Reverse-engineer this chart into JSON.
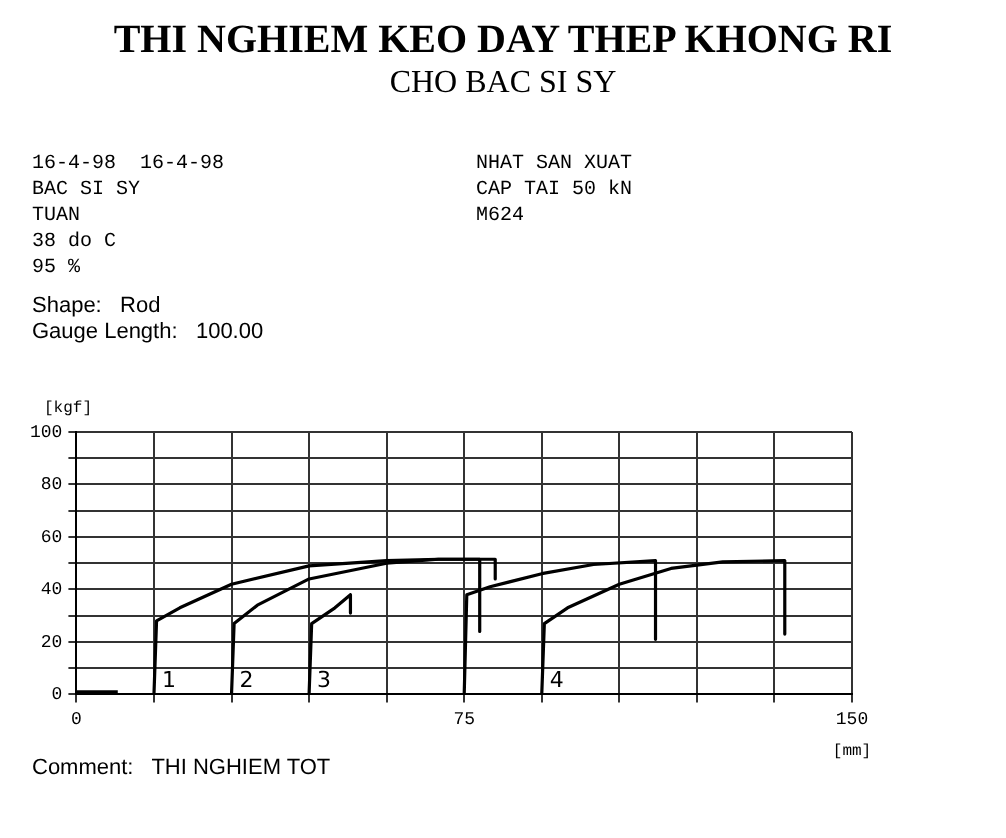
{
  "chart_data": {
    "type": "line",
    "title": "THI NGHIEM KEO DAY THEP KHONG RI",
    "subtitle": "CHO BAC SI SY",
    "xlabel": "[mm]",
    "ylabel": "[kgf]",
    "annotations": [
      "16-4-98  16-4-98",
      "BAC SI SY",
      "TUAN",
      "38 do C",
      "95 %",
      "NHAT SAN XUAT",
      "CAP TAI 50 kN",
      "M624",
      "Shape:   Rod",
      "Gauge Length:   100.00",
      "Comment:   THI NGHIEM TOT"
    ],
    "series": [
      {
        "color": "#000000",
        "x": [
          0,
          8
        ],
        "values": [
          1,
          1
        ]
      },
      {
        "name": "1",
        "color": "#000000",
        "x": [
          15,
          15.5,
          20,
          30,
          45,
          60,
          70,
          78,
          78
        ],
        "values": [
          0,
          28,
          33,
          42,
          49,
          51,
          51.5,
          51.5,
          24
        ]
      },
      {
        "name": "2",
        "color": "#000000",
        "x": [
          30,
          30.5,
          35,
          45,
          60,
          70,
          81,
          81
        ],
        "values": [
          0,
          27,
          34,
          44,
          50,
          51.5,
          51.5,
          44
        ]
      },
      {
        "name": "3",
        "color": "#000000",
        "x": [
          45,
          45.5,
          50,
          53,
          53
        ],
        "values": [
          0,
          27,
          33,
          38,
          31
        ]
      },
      {
        "color": "#000000",
        "x": [
          75,
          75.5,
          80,
          90,
          100,
          112,
          112
        ],
        "values": [
          0,
          38,
          41,
          46,
          49.5,
          51,
          21
        ]
      },
      {
        "name": "4",
        "color": "#000000",
        "x": [
          90,
          90.5,
          95,
          105,
          115,
          125,
          137,
          137
        ],
        "values": [
          0,
          27,
          33,
          42,
          48,
          50.5,
          51,
          23
        ]
      }
    ],
    "xlim": [
      0,
      150
    ],
    "ylim": [
      0,
      100
    ],
    "xticks": [
      0,
      {
        "value": 15,
        "label": null
      },
      {
        "value": 30,
        "label": null
      },
      {
        "value": 45,
        "label": null
      },
      {
        "value": 60,
        "label": null
      },
      75,
      {
        "value": 90,
        "label": null
      },
      {
        "value": 105,
        "label": null
      },
      {
        "value": 120,
        "label": null
      },
      {
        "value": 135,
        "label": null
      },
      150
    ],
    "yticks": [
      0,
      {
        "value": 10,
        "label": null
      },
      20,
      {
        "value": 30,
        "label": null
      },
      40,
      {
        "value": 50,
        "label": null
      },
      60,
      {
        "value": 70,
        "label": null
      },
      80,
      {
        "value": 90,
        "label": null
      },
      100
    ],
    "grid": true,
    "legend": false,
    "marker": "none",
    "line_style": "solid"
  }
}
